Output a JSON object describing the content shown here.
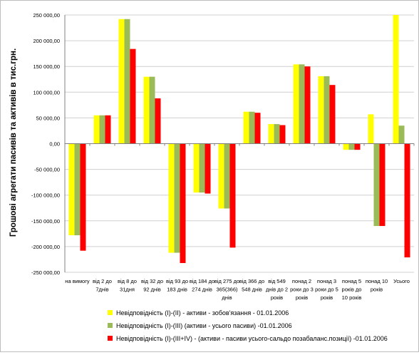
{
  "chart_data": {
    "type": "bar",
    "ylabel": "Грошові агрегати пасивів та активів в тис.грн.",
    "ylim": [
      -250000,
      250000
    ],
    "y_ticks": [
      -250000,
      -200000,
      -150000,
      -100000,
      -50000,
      0,
      50000,
      100000,
      150000,
      200000,
      250000
    ],
    "y_tick_labels": [
      "-250 000,00",
      "-200 000,00",
      "-150 000,00",
      "-100 000,00",
      "-50 000,00",
      "0,00",
      "50 000,00",
      "100 000,00",
      "150 000,00",
      "200 000,00",
      "250 000,00"
    ],
    "grid": true,
    "legend_position": "bottom",
    "categories": [
      [
        "на вимогу"
      ],
      [
        "від 2 до",
        "7днів"
      ],
      [
        "від 8 до",
        "31дня"
      ],
      [
        "від 32 до",
        "92 днів"
      ],
      [
        "від 93 до",
        "183 днів"
      ],
      [
        "від 184 до",
        "274 днів"
      ],
      [
        "від 275 до",
        "365(366)",
        "днів"
      ],
      [
        "від 366 до",
        "548 днів"
      ],
      [
        "від 549",
        "днів до 2",
        "років"
      ],
      [
        "понад 2",
        "роки до 3",
        "років"
      ],
      [
        "понад 3",
        "роки до 5",
        "років"
      ],
      [
        "понад 5",
        "років до",
        "10 років"
      ],
      [
        "понад 10",
        "років"
      ],
      [
        "Усього"
      ]
    ],
    "series": [
      {
        "name": "Невідповідність (І)-(ІІ) - активи - зобов'язання - 01.01.2006",
        "color": "#ffff00",
        "values": [
          -178000,
          55000,
          242000,
          130000,
          -212000,
          -95000,
          -126000,
          62000,
          38000,
          154000,
          131000,
          -12000,
          57000,
          250000
        ]
      },
      {
        "name": "Невідповідність (І)-(ІІІ) (активи - усього пасиви) -01.01.2006",
        "color": "#9bbb59",
        "values": [
          -178000,
          55000,
          242000,
          130000,
          -212000,
          -95000,
          -126000,
          62000,
          38000,
          154000,
          131000,
          -12000,
          -160000,
          35000
        ]
      },
      {
        "name": "Невідповідність (І)-(ІІІ+IV) - (активи - пасиви усього-сальдо позабаланс.позиції) -01.01.2006",
        "color": "#ff0000",
        "values": [
          -208000,
          55000,
          184000,
          88000,
          -232000,
          -97000,
          -202000,
          60000,
          36000,
          150000,
          114000,
          -12000,
          -160000,
          -221000
        ]
      }
    ]
  }
}
